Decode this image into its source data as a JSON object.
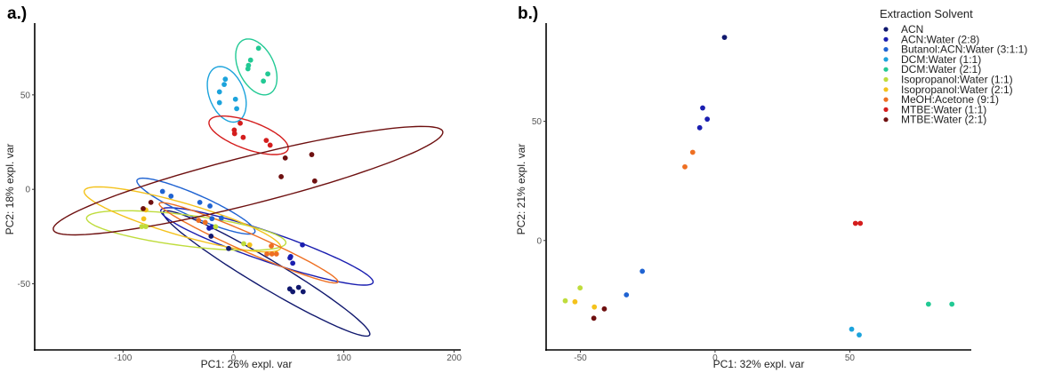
{
  "legend": {
    "title": "Extraction Solvent",
    "position": "top-right",
    "items": [
      {
        "name": "ACN",
        "color": "#10186e"
      },
      {
        "name": "ACN:Water (2:8)",
        "color": "#1a1eb0"
      },
      {
        "name": "Butanol:ACN:Water (3:1:1)",
        "color": "#1f63d2"
      },
      {
        "name": "DCM:Water (1:1)",
        "color": "#1ca3dc"
      },
      {
        "name": "DCM:Water (2:1)",
        "color": "#22c994"
      },
      {
        "name": "Isopropanol:Water (1:1)",
        "color": "#bfdc3c"
      },
      {
        "name": "Isopropanol:Water (2:1)",
        "color": "#f4c21c"
      },
      {
        "name": "MeOH:Acetone (9:1)",
        "color": "#ee6f22"
      },
      {
        "name": "MTBE:Water (1:1)",
        "color": "#d41d1d"
      },
      {
        "name": "MTBE:Water (2:1)",
        "color": "#6e1010"
      }
    ]
  },
  "chart_data": [
    {
      "panel_label": "a.)",
      "type": "scatter",
      "xlabel": "PC1: 26% expl. var",
      "ylabel": "PC2: 18% expl. var",
      "xlim": [
        -180,
        206
      ],
      "ylim": [
        -85,
        88
      ],
      "xticks": [
        -100,
        0,
        100,
        200
      ],
      "yticks": [
        -50,
        0,
        50
      ],
      "grid": false,
      "ellipses": true,
      "series": [
        {
          "name": "ACN",
          "points": [
            [
              51.1,
              -52.7
            ],
            [
              53.8,
              -54.2
            ],
            [
              59.1,
              -51.9
            ],
            [
              63.2,
              -54.2
            ],
            [
              -4.3,
              -31.3
            ],
            [
              -20.2,
              -24.8
            ]
          ],
          "ellipse": {
            "center": [
              30.0,
              -44.5
            ],
            "matrix": [
              [
                8780,
                -3005
              ],
              [
                -3005,
                1102
              ]
            ]
          }
        },
        {
          "name": "ACN:Water (2:8)",
          "points": [
            [
              62.6,
              -29.4
            ],
            [
              51.9,
              -35.6
            ],
            [
              51.3,
              -36.3
            ],
            [
              53.8,
              -39.1
            ],
            [
              -22.0,
              -20.6
            ],
            [
              -19.6,
              -20.0
            ]
          ],
          "ellipse": {
            "center": [
              30.4,
              -30.2
            ],
            "matrix": [
              [
                9254,
                -1808
              ],
              [
                -1808,
                420
              ]
            ]
          }
        },
        {
          "name": "Butanol:ACN:Water (3:1:1)",
          "points": [
            [
              -64.2,
              -1.1
            ],
            [
              -56.5,
              -3.6
            ],
            [
              -30.4,
              -6.9
            ],
            [
              -21.2,
              -8.8
            ],
            [
              -19.4,
              -15.5
            ],
            [
              -10.8,
              -15.2
            ]
          ],
          "ellipse": {
            "center": [
              -33.9,
              -8.9
            ],
            "matrix": [
              [
                2862,
                -712
              ],
              [
                -712,
                219
              ]
            ]
          }
        },
        {
          "name": "DCM:Water (1:1)",
          "points": [
            [
              -7.3,
              58.3
            ],
            [
              -8.3,
              55.5
            ],
            [
              -12.6,
              51.6
            ],
            [
              -12.6,
              45.9
            ],
            [
              1.9,
              47.7
            ],
            [
              3.0,
              42.7
            ]
          ],
          "ellipse": {
            "center": [
              -6.0,
              50.3
            ],
            "matrix": [
              [
                310,
                -88
              ],
              [
                -88,
                216
              ]
            ]
          }
        },
        {
          "name": "DCM:Water (2:1)",
          "points": [
            [
              22.8,
              74.7
            ],
            [
              15.6,
              68.4
            ],
            [
              13.7,
              65.6
            ],
            [
              13.2,
              63.8
            ],
            [
              31.2,
              61.1
            ],
            [
              27.2,
              57.3
            ]
          ],
          "ellipse": {
            "center": [
              20.8,
              64.8
            ],
            "matrix": [
              [
                350,
                -109.5
              ],
              [
                -109.5,
                219
              ]
            ]
          }
        },
        {
          "name": "Isopropanol:Water (1:1)",
          "points": [
            [
              9.4,
              -28.8
            ],
            [
              -16.1,
              -19.8
            ],
            [
              -83.0,
              -19.7
            ],
            [
              -79.3,
              -19.7
            ]
          ],
          "ellipse": {
            "center": [
              -42.7,
              -21.8
            ],
            "matrix": [
              [
                8154,
                -582
              ],
              [
                -582,
                110
              ]
            ]
          }
        },
        {
          "name": "Isopropanol:Water (2:1)",
          "points": [
            [
              14.8,
              -29.4
            ],
            [
              -81.2,
              -15.6
            ],
            [
              -79.3,
              -10.9
            ]
          ],
          "ellipse": {
            "center": [
              -46.1,
              -15.9
            ],
            "matrix": [
              [
                7939,
                -1311
              ],
              [
                -1311,
                296
              ]
            ]
          }
        },
        {
          "name": "MeOH:Acetone (9:1)",
          "points": [
            [
              34.4,
              -30.0
            ],
            [
              30.4,
              -34.2
            ],
            [
              34.9,
              -34.2
            ],
            [
              39.0,
              -34.2
            ],
            [
              -31.5,
              -16.4
            ],
            [
              -25.5,
              -17.5
            ]
          ],
          "ellipse": {
            "center": [
              13.8,
              -28.3
            ],
            "matrix": [
              [
                6561,
                -1666
              ],
              [
                -1666,
                451.6
              ]
            ]
          }
        },
        {
          "name": "MTBE:Water (1:1)",
          "points": [
            [
              6.2,
              35.0
            ],
            [
              0.8,
              31.4
            ],
            [
              1.1,
              29.5
            ],
            [
              8.9,
              27.5
            ],
            [
              29.8,
              25.9
            ],
            [
              33.3,
              23.4
            ]
          ],
          "ellipse": {
            "center": [
              13.8,
              28.6
            ],
            "matrix": [
              [
                1289,
                -237
              ],
              [
                -237,
                104
              ]
            ]
          }
        },
        {
          "name": "MTBE:Water (2:1)",
          "points": [
            [
              -81.7,
              -10.2
            ],
            [
              -74.7,
              -6.9
            ],
            [
              47.0,
              16.6
            ],
            [
              71.0,
              18.4
            ],
            [
              43.3,
              6.7
            ],
            [
              73.7,
              4.4
            ]
          ],
          "ellipse": {
            "center": [
              13.3,
              4.6
            ],
            "matrix": [
              [
                31152,
                4517
              ],
              [
                4517,
                824
              ]
            ]
          }
        }
      ]
    },
    {
      "panel_label": "b.)",
      "type": "scatter",
      "xlabel": "PC1: 32% expl. var",
      "ylabel": "PC2: 21% expl. var",
      "xlim": [
        -62.7,
        95.1
      ],
      "ylim": [
        -45.9,
        91.2
      ],
      "xticks": [
        -50,
        0,
        50
      ],
      "yticks": [
        0,
        50
      ],
      "grid": false,
      "ellipses": false,
      "series": [
        {
          "name": "ACN",
          "points": [
            [
              3.5,
              85.2
            ]
          ]
        },
        {
          "name": "ACN:Water (2:8)",
          "points": [
            [
              -4.6,
              55.6
            ],
            [
              -2.9,
              50.9
            ],
            [
              -5.7,
              47.3
            ]
          ]
        },
        {
          "name": "Butanol:ACN:Water (3:1:1)",
          "points": [
            [
              -27.0,
              -12.9
            ],
            [
              -32.9,
              -22.8
            ]
          ]
        },
        {
          "name": "DCM:Water (1:1)",
          "points": [
            [
              50.7,
              -37.2
            ],
            [
              53.5,
              -39.6
            ]
          ]
        },
        {
          "name": "DCM:Water (2:1)",
          "points": [
            [
              79.2,
              -26.7
            ],
            [
              87.9,
              -26.7
            ]
          ]
        },
        {
          "name": "Isopropanol:Water (1:1)",
          "points": [
            [
              -50.1,
              -19.9
            ],
            [
              -55.6,
              -25.3
            ]
          ]
        },
        {
          "name": "Isopropanol:Water (2:1)",
          "points": [
            [
              -52.0,
              -25.7
            ],
            [
              -44.8,
              -27.9
            ]
          ]
        },
        {
          "name": "MeOH:Acetone (9:1)",
          "points": [
            [
              -8.3,
              37.0
            ],
            [
              -11.2,
              30.9
            ]
          ]
        },
        {
          "name": "MTBE:Water (1:1)",
          "points": [
            [
              52.1,
              7.2
            ],
            [
              53.9,
              7.2
            ]
          ]
        },
        {
          "name": "MTBE:Water (2:1)",
          "points": [
            [
              -41.1,
              -28.7
            ],
            [
              -45.0,
              -32.6
            ]
          ]
        }
      ]
    }
  ]
}
